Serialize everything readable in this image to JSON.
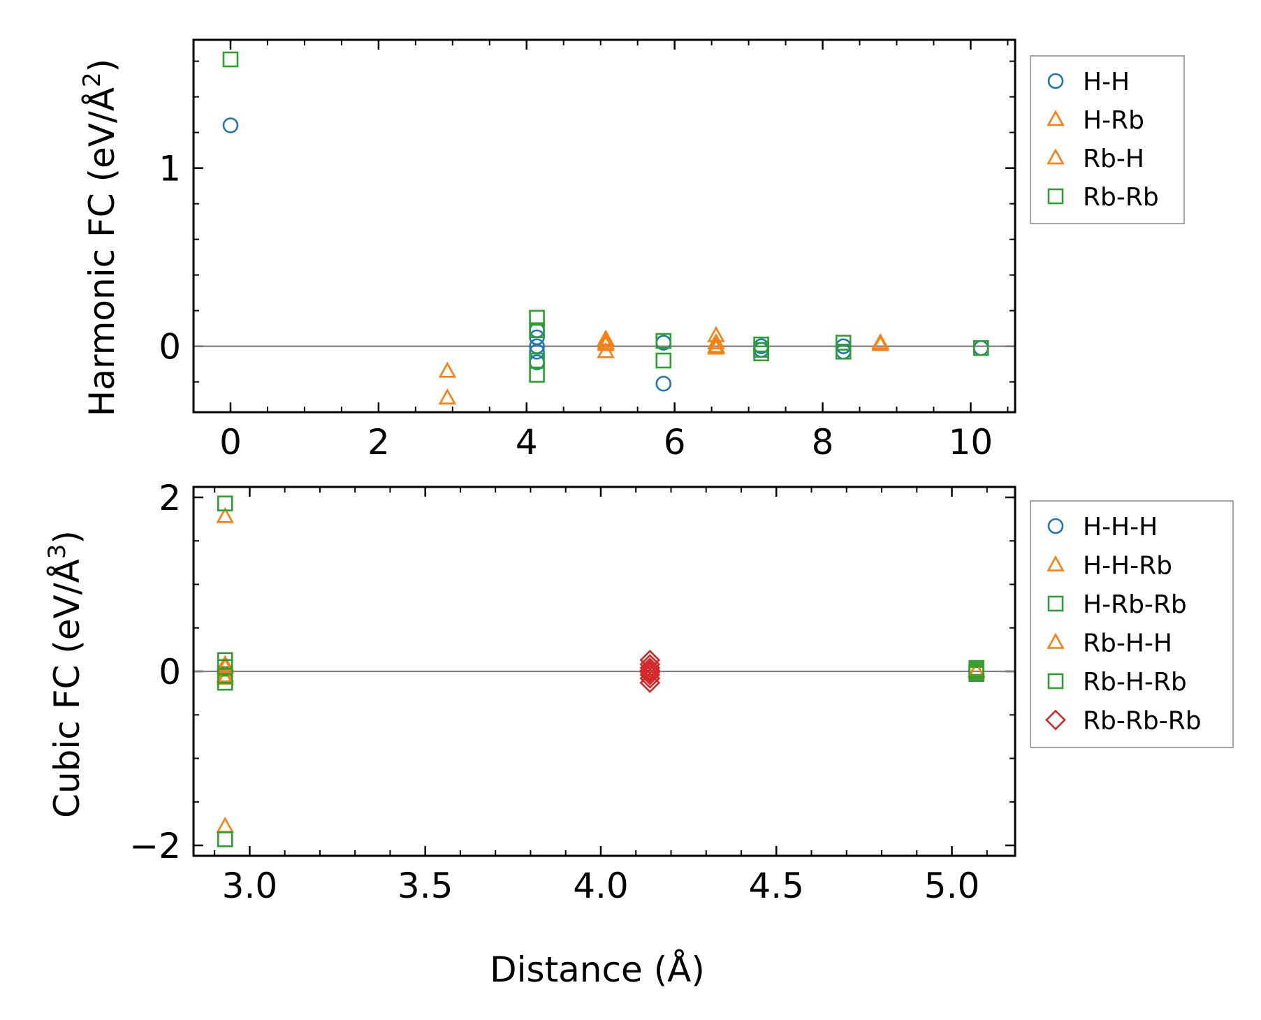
{
  "colors": {
    "blue": "#1f77b4",
    "orange": "#ff7f0e",
    "green": "#2ca02c",
    "red": "#d62728",
    "zero_line": "#808080",
    "axis": "#000000",
    "legend_frame": "#888888"
  },
  "xlabel": "Distance (Å)",
  "chart_data": [
    {
      "type": "scatter",
      "id": "harmonic",
      "ylabel_main": "Harmonic FC (eV/Å",
      "ylabel_sup": "2",
      "ylabel_close": ")",
      "xlim": [
        -0.5,
        10.6
      ],
      "ylim": [
        -0.37,
        1.72
      ],
      "xticks": [
        0,
        2,
        4,
        6,
        8,
        10
      ],
      "xtick_labels": [
        "0",
        "2",
        "4",
        "6",
        "8",
        "10"
      ],
      "xminor": [
        -0.5,
        0.5,
        1.0,
        1.5,
        2.5,
        3.0,
        3.5,
        4.5,
        5.0,
        5.5,
        6.5,
        7.0,
        7.5,
        8.5,
        9.0,
        9.5,
        10.5
      ],
      "yticks": [
        0,
        1
      ],
      "ytick_labels": [
        "0",
        "1"
      ],
      "yminor": [
        -0.2,
        0.2,
        0.4,
        0.6,
        0.8,
        1.2,
        1.4,
        1.6
      ],
      "zero_line": 0,
      "legend_position": "outside-right-top",
      "series": [
        {
          "name": "H-H",
          "marker": "circle",
          "color": "blue",
          "x": [
            0.0,
            4.14,
            4.14,
            4.14,
            4.14,
            4.14,
            5.85,
            5.85,
            7.17,
            7.17,
            8.28,
            8.28,
            10.14
          ],
          "y": [
            1.24,
            0.09,
            0.05,
            0.0,
            -0.03,
            -0.09,
            0.02,
            -0.21,
            0.0,
            -0.02,
            0.0,
            -0.03,
            -0.01
          ]
        },
        {
          "name": "H-Rb",
          "marker": "triangle",
          "color": "orange",
          "x": [
            2.93,
            2.93,
            5.07,
            5.07,
            5.07,
            6.56,
            6.56,
            8.78
          ],
          "y": [
            -0.14,
            -0.29,
            0.04,
            0.01,
            -0.03,
            0.06,
            0.0,
            0.02
          ]
        },
        {
          "name": "Rb-H",
          "marker": "triangle",
          "color": "orange",
          "x": [
            5.07,
            6.56,
            6.56,
            8.78
          ],
          "y": [
            0.02,
            0.02,
            -0.01,
            0.01
          ]
        },
        {
          "name": "Rb-Rb",
          "marker": "square",
          "color": "green",
          "x": [
            0.0,
            4.14,
            4.14,
            4.14,
            4.14,
            5.85,
            5.85,
            7.17,
            7.17,
            7.17,
            8.28,
            8.28,
            10.14
          ],
          "y": [
            1.61,
            0.16,
            0.09,
            -0.08,
            -0.16,
            0.03,
            -0.08,
            0.01,
            -0.02,
            -0.04,
            0.02,
            -0.03,
            -0.01
          ]
        }
      ]
    },
    {
      "type": "scatter",
      "id": "cubic",
      "ylabel_main": "Cubic FC (eV/Å",
      "ylabel_sup": "3",
      "ylabel_close": ")",
      "xlim": [
        2.84,
        5.18
      ],
      "ylim": [
        -2.12,
        2.12
      ],
      "xticks": [
        3.0,
        3.5,
        4.0,
        4.5,
        5.0
      ],
      "xtick_labels": [
        "3.0",
        "3.5",
        "4.0",
        "4.5",
        "5.0"
      ],
      "xminor": [
        2.9,
        3.1,
        3.2,
        3.3,
        3.4,
        3.6,
        3.7,
        3.8,
        3.9,
        4.1,
        4.2,
        4.3,
        4.4,
        4.6,
        4.7,
        4.8,
        4.9,
        5.1
      ],
      "yticks": [
        -2,
        0,
        2
      ],
      "ytick_labels": [
        "−2",
        "0",
        "2"
      ],
      "yminor": [
        -1.5,
        -1.0,
        -0.5,
        0.5,
        1.0,
        1.5
      ],
      "zero_line": 0,
      "legend_position": "outside-right-top",
      "series": [
        {
          "name": "H-H-H",
          "marker": "circle",
          "color": "blue",
          "x": [],
          "y": []
        },
        {
          "name": "H-H-Rb",
          "marker": "triangle",
          "color": "orange",
          "x": [
            2.93,
            2.93,
            2.93,
            2.93,
            5.07
          ],
          "y": [
            1.78,
            0.08,
            -0.08,
            -1.78,
            0.0
          ]
        },
        {
          "name": "H-Rb-Rb",
          "marker": "square",
          "color": "green",
          "x": [
            2.93,
            2.93,
            2.93,
            5.07,
            5.07
          ],
          "y": [
            1.93,
            0.13,
            -0.13,
            0.04,
            -0.03
          ]
        },
        {
          "name": "Rb-H-H",
          "marker": "triangle",
          "color": "orange",
          "x": [
            2.93,
            2.93,
            5.07
          ],
          "y": [
            0.05,
            -0.05,
            0.01
          ]
        },
        {
          "name": "Rb-H-Rb",
          "marker": "square",
          "color": "green",
          "x": [
            2.93,
            2.93,
            2.93,
            5.07,
            5.07,
            5.07
          ],
          "y": [
            0.05,
            -0.05,
            -1.93,
            0.02,
            0.0,
            -0.02
          ]
        },
        {
          "name": "Rb-Rb-Rb",
          "marker": "diamond",
          "color": "red",
          "x": [
            4.14,
            4.14,
            4.14,
            4.14,
            4.14,
            4.14,
            4.14,
            4.14
          ],
          "y": [
            0.13,
            0.08,
            0.04,
            0.01,
            -0.01,
            -0.04,
            -0.08,
            -0.13
          ]
        }
      ]
    }
  ]
}
